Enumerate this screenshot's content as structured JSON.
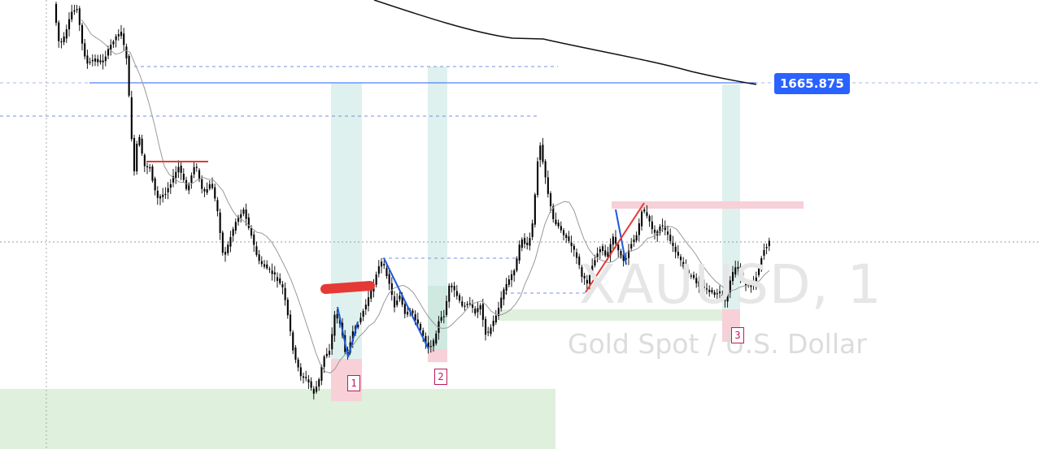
{
  "chart_data": {
    "type": "candlestick",
    "symbol": "XAUUSD, 1",
    "description": "Gold Spot / U.S. Dollar",
    "price_label": "1665.875",
    "marker_labels": [
      "1",
      "2",
      "3"
    ],
    "colors": {
      "candle": "#000000",
      "price_line": "#2962ff",
      "badge": "#2962ff",
      "moving_average": "#999999",
      "long_ma": "#111111",
      "supply_zone": "#f8d0d8",
      "demand_zone": "#dff0dc",
      "target_column": "#dff1ee",
      "red_line": "#e53935",
      "blue_leg": "#1e5ad8",
      "marker": "#c2185b"
    }
  }
}
